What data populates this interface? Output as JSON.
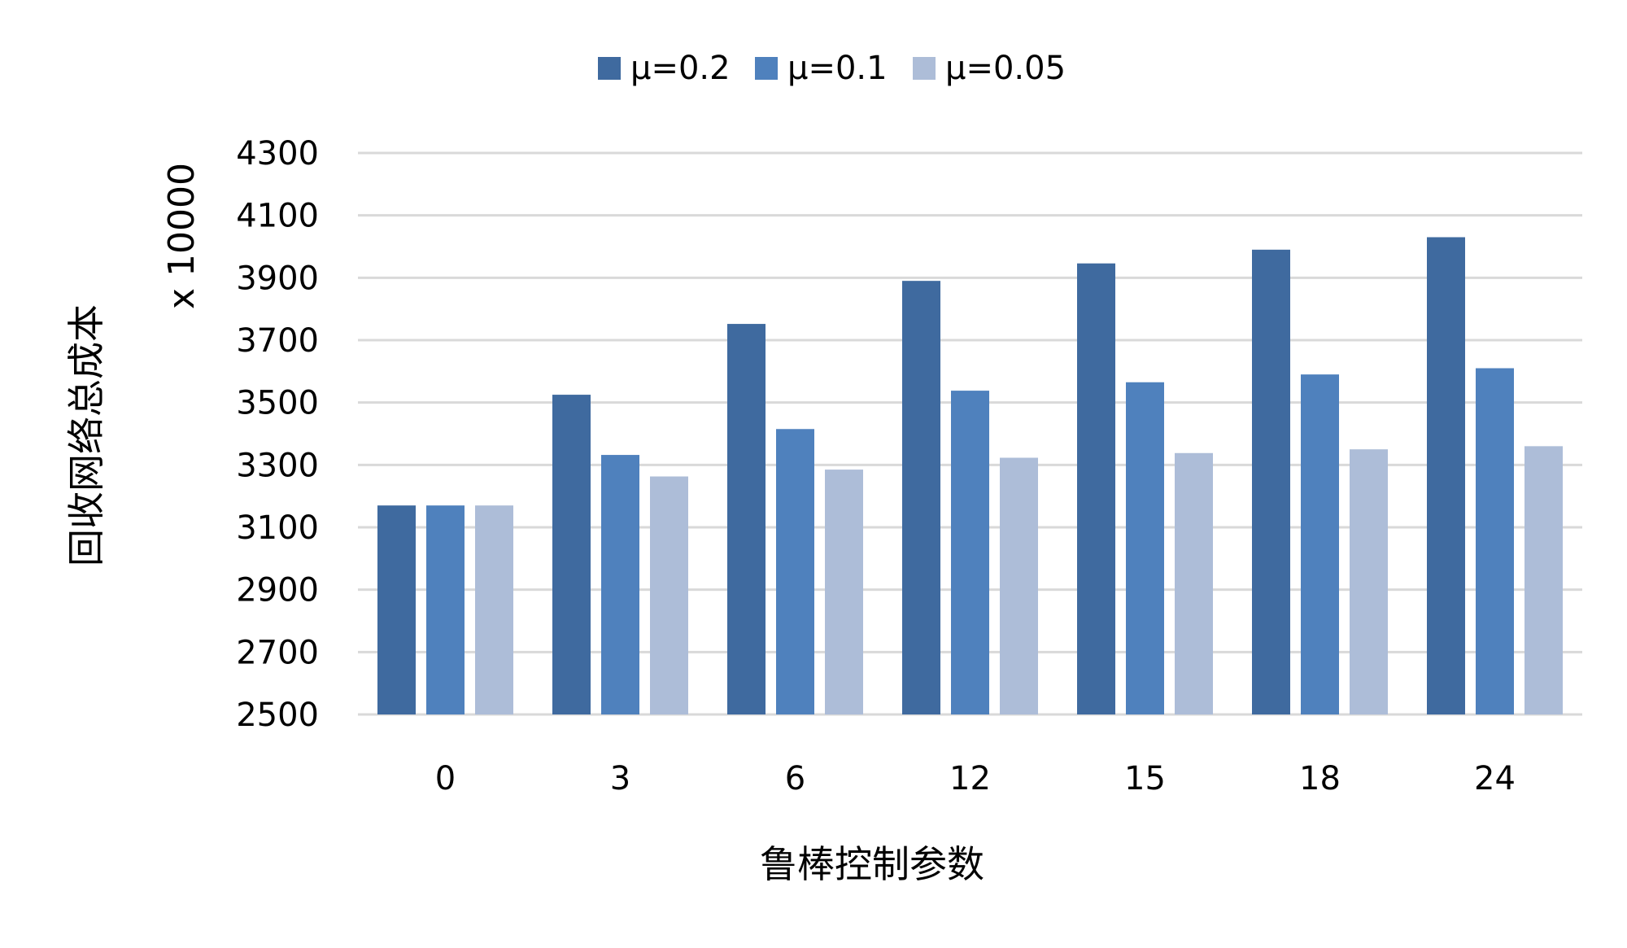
{
  "chart_data": {
    "type": "bar",
    "categories": [
      "0",
      "3",
      "6",
      "12",
      "15",
      "18",
      "24"
    ],
    "series": [
      {
        "name": "μ=0.2",
        "color": "#3f6a9f",
        "values": [
          3170,
          3525,
          3752,
          3890,
          3946,
          3990,
          4030
        ]
      },
      {
        "name": "μ=0.1",
        "color": "#4f81bd",
        "values": [
          3170,
          3332,
          3415,
          3538,
          3565,
          3590,
          3610
        ]
      },
      {
        "name": "μ=0.05",
        "color": "#adbdd8",
        "values": [
          3170,
          3263,
          3285,
          3323,
          3338,
          3350,
          3360
        ]
      }
    ],
    "xlabel": "鲁棒控制参数",
    "ylabel": "回收网络总成本",
    "yunit": "x 10000",
    "ylim": [
      2500,
      4300
    ],
    "yticks": [
      2500,
      2700,
      2900,
      3100,
      3300,
      3500,
      3700,
      3900,
      4100,
      4300
    ],
    "grid": true,
    "legend_position": "top"
  }
}
